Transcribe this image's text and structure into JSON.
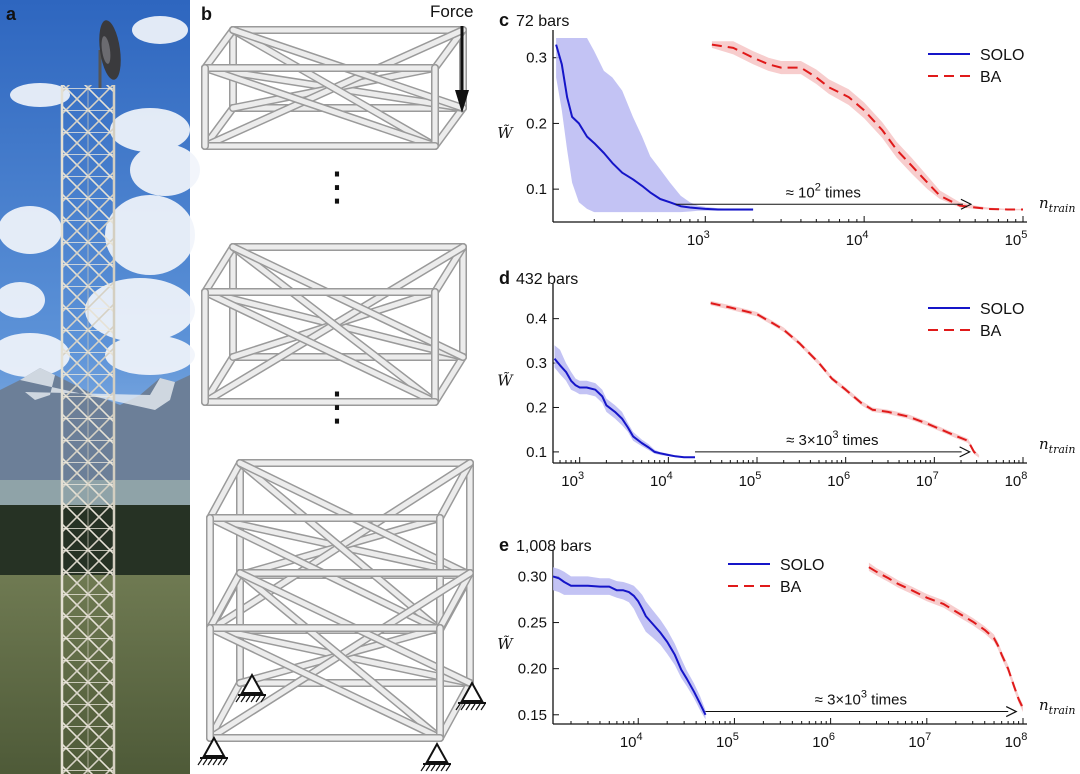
{
  "panels": {
    "a": {
      "label": "a"
    },
    "b": {
      "label": "b",
      "force_label": "Force",
      "ellipsis": "⋮"
    }
  },
  "chart_data": [
    {
      "type": "line",
      "panel_label": "c",
      "title": "72 bars",
      "ylabel": "W̃",
      "xlabel": "n_train",
      "xscale": "log",
      "xlim": [
        110,
        100000
      ],
      "ylim": [
        0.05,
        0.33
      ],
      "xticks": [
        1000,
        10000,
        100000
      ],
      "xtick_labels": [
        [
          "10",
          "3"
        ],
        [
          "10",
          "4"
        ],
        [
          "10",
          "5"
        ]
      ],
      "yticks": [
        0.1,
        0.2,
        0.3
      ],
      "ytick_labels": [
        "0.1",
        "0.2",
        "0.3"
      ],
      "legend_position": "top-right",
      "annotation": {
        "prefix": "≈ 10",
        "sup": "2",
        "suffix": " times",
        "from_x": 650,
        "to_x": 47000,
        "y": 0.077
      },
      "series": [
        {
          "name": "SOLO",
          "color": "#1515c8",
          "style": "solid",
          "band_color": "#b9b9f2",
          "x": [
            115,
            125,
            135,
            145,
            160,
            180,
            200,
            230,
            260,
            300,
            350,
            400,
            450,
            520,
            600,
            700,
            800,
            900,
            1000,
            1200,
            1500,
            2000
          ],
          "y": [
            0.32,
            0.29,
            0.24,
            0.21,
            0.2,
            0.18,
            0.17,
            0.155,
            0.14,
            0.125,
            0.115,
            0.105,
            0.095,
            0.085,
            0.08,
            0.074,
            0.072,
            0.071,
            0.07,
            0.069,
            0.069,
            0.069
          ],
          "band_lo": [
            0.27,
            0.22,
            0.16,
            0.11,
            0.08,
            0.07,
            0.065,
            0.065,
            0.065,
            0.065,
            0.065,
            0.065,
            0.065,
            0.065,
            0.065,
            0.065,
            0.066,
            0.067,
            0.067,
            0.067,
            0.067,
            0.067
          ],
          "band_hi": [
            0.33,
            0.33,
            0.33,
            0.33,
            0.33,
            0.33,
            0.31,
            0.28,
            0.27,
            0.25,
            0.21,
            0.18,
            0.15,
            0.13,
            0.11,
            0.09,
            0.08,
            0.075,
            0.073,
            0.071,
            0.07,
            0.07
          ]
        },
        {
          "name": "BA",
          "color": "#e01a1a",
          "style": "dashed",
          "band_color": "#f6c4c4",
          "x": [
            1100,
            1500,
            2000,
            2500,
            3000,
            4000,
            5000,
            6000,
            8000,
            10000,
            13000,
            16000,
            20000,
            25000,
            30000,
            40000,
            50000,
            60000,
            80000,
            100000
          ],
          "y": [
            0.32,
            0.315,
            0.3,
            0.29,
            0.285,
            0.285,
            0.27,
            0.255,
            0.24,
            0.22,
            0.19,
            0.16,
            0.135,
            0.11,
            0.09,
            0.075,
            0.072,
            0.07,
            0.069,
            0.069
          ],
          "band_lo": [
            0.315,
            0.305,
            0.29,
            0.28,
            0.275,
            0.275,
            0.26,
            0.245,
            0.228,
            0.208,
            0.178,
            0.148,
            0.123,
            0.1,
            0.085,
            0.072,
            0.07,
            0.069,
            0.068,
            0.068
          ],
          "band_hi": [
            0.325,
            0.325,
            0.31,
            0.3,
            0.295,
            0.295,
            0.282,
            0.267,
            0.252,
            0.232,
            0.202,
            0.172,
            0.147,
            0.12,
            0.098,
            0.08,
            0.075,
            0.072,
            0.07,
            0.07
          ]
        }
      ]
    },
    {
      "type": "line",
      "panel_label": "d",
      "title": "432 bars",
      "ylabel": "W̃",
      "xlabel": "n_train",
      "xscale": "log",
      "xlim": [
        500,
        100000000
      ],
      "ylim": [
        0.075,
        0.46
      ],
      "xticks": [
        1000,
        10000,
        100000,
        1000000,
        10000000,
        100000000
      ],
      "xtick_labels": [
        [
          "10",
          "3"
        ],
        [
          "10",
          "4"
        ],
        [
          "10",
          "5"
        ],
        [
          "10",
          "6"
        ],
        [
          "10",
          "7"
        ],
        [
          "10",
          "8"
        ]
      ],
      "yticks": [
        0.1,
        0.2,
        0.3,
        0.4
      ],
      "ytick_labels": [
        "0.1",
        "0.2",
        "0.3",
        "0.4"
      ],
      "legend_position": "top-right",
      "annotation": {
        "prefix": "≈ 3×10",
        "sup": "3",
        "suffix": " times",
        "from_x": 20000,
        "to_x": 25000000,
        "y": 0.1
      },
      "series": [
        {
          "name": "SOLO",
          "color": "#1515c8",
          "style": "solid",
          "band_color": "#b9b9f2",
          "x": [
            520,
            600,
            700,
            800,
            900,
            1000,
            1200,
            1500,
            1800,
            2000,
            2500,
            3000,
            3500,
            4000,
            5000,
            6000,
            7000,
            8000,
            10000,
            12000,
            15000,
            20000
          ],
          "y": [
            0.31,
            0.295,
            0.28,
            0.26,
            0.25,
            0.245,
            0.245,
            0.24,
            0.225,
            0.205,
            0.19,
            0.175,
            0.155,
            0.135,
            0.12,
            0.11,
            0.1,
            0.097,
            0.093,
            0.09,
            0.088,
            0.088
          ],
          "band_lo": [
            0.29,
            0.275,
            0.26,
            0.24,
            0.235,
            0.23,
            0.23,
            0.225,
            0.21,
            0.19,
            0.175,
            0.16,
            0.145,
            0.125,
            0.113,
            0.104,
            0.096,
            0.093,
            0.09,
            0.088,
            0.087,
            0.087
          ],
          "band_hi": [
            0.34,
            0.33,
            0.3,
            0.28,
            0.265,
            0.26,
            0.26,
            0.255,
            0.24,
            0.22,
            0.205,
            0.19,
            0.165,
            0.145,
            0.128,
            0.117,
            0.105,
            0.1,
            0.096,
            0.092,
            0.089,
            0.089
          ]
        },
        {
          "name": "BA",
          "color": "#e01a1a",
          "style": "dashed",
          "band_color": "#f6c4c4",
          "x": [
            30000,
            50000,
            80000,
            100000,
            150000,
            200000,
            300000,
            500000,
            700000,
            1000000,
            1500000,
            2000000,
            3000000,
            5000000,
            8000000,
            12000000,
            18000000,
            24000000,
            28000000,
            32000000
          ],
          "y": [
            0.435,
            0.425,
            0.415,
            0.41,
            0.39,
            0.375,
            0.345,
            0.3,
            0.265,
            0.24,
            0.21,
            0.195,
            0.19,
            0.18,
            0.165,
            0.15,
            0.135,
            0.125,
            0.1,
            0.09
          ],
          "band_lo": [
            0.43,
            0.42,
            0.41,
            0.405,
            0.385,
            0.37,
            0.34,
            0.295,
            0.26,
            0.235,
            0.205,
            0.19,
            0.185,
            0.175,
            0.16,
            0.145,
            0.13,
            0.12,
            0.095,
            0.087
          ],
          "band_hi": [
            0.44,
            0.43,
            0.42,
            0.415,
            0.395,
            0.38,
            0.35,
            0.305,
            0.27,
            0.245,
            0.215,
            0.2,
            0.195,
            0.185,
            0.17,
            0.155,
            0.14,
            0.13,
            0.105,
            0.093
          ]
        }
      ]
    },
    {
      "type": "line",
      "panel_label": "e",
      "title": "1,008 bars",
      "ylabel": "W̃",
      "xlabel": "n_train",
      "xscale": "log",
      "xlim": [
        1300,
        100000000
      ],
      "ylim": [
        0.14,
        0.32
      ],
      "xticks": [
        10000,
        100000,
        1000000,
        10000000,
        100000000
      ],
      "xtick_labels": [
        [
          "10",
          "4"
        ],
        [
          "10",
          "5"
        ],
        [
          "10",
          "6"
        ],
        [
          "10",
          "7"
        ],
        [
          "10",
          "8"
        ]
      ],
      "yticks": [
        0.15,
        0.2,
        0.25,
        0.3
      ],
      "ytick_labels": [
        "0.15",
        "0.20",
        "0.25",
        "0.30"
      ],
      "legend_position": "top-left",
      "annotation": {
        "prefix": "≈ 3×10",
        "sup": "3",
        "suffix": " times",
        "from_x": 50000,
        "to_x": 85000000,
        "y": 0.1535
      },
      "series": [
        {
          "name": "SOLO",
          "color": "#1515c8",
          "style": "solid",
          "band_color": "#b9b9f2",
          "x": [
            1300,
            1500,
            1700,
            2000,
            2500,
            3000,
            4000,
            5000,
            6000,
            7000,
            8000,
            9000,
            10000,
            11000,
            12000,
            14000,
            17000,
            20000,
            24000,
            28000,
            32000,
            38000,
            44000,
            50000
          ],
          "y": [
            0.3,
            0.298,
            0.294,
            0.29,
            0.29,
            0.29,
            0.289,
            0.289,
            0.285,
            0.285,
            0.283,
            0.279,
            0.273,
            0.265,
            0.257,
            0.249,
            0.239,
            0.229,
            0.215,
            0.199,
            0.189,
            0.175,
            0.162,
            0.15
          ],
          "band_lo": [
            0.285,
            0.283,
            0.28,
            0.28,
            0.28,
            0.28,
            0.28,
            0.28,
            0.277,
            0.275,
            0.272,
            0.265,
            0.255,
            0.247,
            0.24,
            0.234,
            0.226,
            0.216,
            0.204,
            0.19,
            0.181,
            0.168,
            0.155,
            0.145
          ],
          "band_hi": [
            0.31,
            0.308,
            0.305,
            0.3,
            0.3,
            0.3,
            0.298,
            0.298,
            0.295,
            0.294,
            0.292,
            0.29,
            0.285,
            0.28,
            0.273,
            0.264,
            0.253,
            0.242,
            0.227,
            0.211,
            0.198,
            0.184,
            0.17,
            0.155
          ]
        },
        {
          "name": "BA",
          "color": "#e01a1a",
          "style": "dashed",
          "band_color": "#f6c4c4",
          "x": [
            2500000,
            3000000,
            4000000,
            5000000,
            7000000,
            10000000,
            15000000,
            20000000,
            30000000,
            40000000,
            50000000,
            55000000,
            60000000,
            70000000,
            80000000,
            90000000,
            100000000
          ],
          "y": [
            0.31,
            0.305,
            0.298,
            0.292,
            0.285,
            0.277,
            0.27,
            0.262,
            0.251,
            0.242,
            0.233,
            0.225,
            0.215,
            0.2,
            0.182,
            0.167,
            0.157
          ],
          "band_lo": [
            0.306,
            0.301,
            0.294,
            0.288,
            0.281,
            0.273,
            0.266,
            0.258,
            0.247,
            0.238,
            0.229,
            0.221,
            0.211,
            0.196,
            0.178,
            0.163,
            0.153
          ],
          "band_hi": [
            0.315,
            0.309,
            0.302,
            0.296,
            0.289,
            0.281,
            0.274,
            0.266,
            0.255,
            0.246,
            0.237,
            0.229,
            0.219,
            0.204,
            0.186,
            0.171,
            0.161
          ]
        }
      ]
    }
  ]
}
